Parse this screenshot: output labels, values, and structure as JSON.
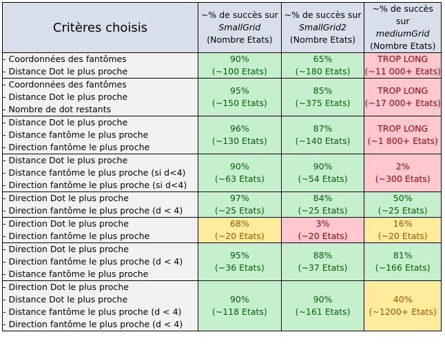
{
  "header": {
    "criteria": "Critères choisis",
    "columns": [
      {
        "line1": "~% de succès sur",
        "map": "SmallGrid",
        "line3": "(Nombre Etats)"
      },
      {
        "line1": "~% de succès sur",
        "map": "SmallGrid2",
        "line3": "(Nombre Etats)"
      },
      {
        "line1": "~% de succès sur",
        "map": "mediumGrid",
        "line3": "(Nombre Etats)"
      }
    ]
  },
  "rows": [
    {
      "criteria": [
        "- Coordonnées des fantômes",
        "- Distance Dot le plus proche"
      ],
      "cells": [
        {
          "pct": "90%",
          "states": "(~100 Etats)",
          "status": "green"
        },
        {
          "pct": "65%",
          "states": "(~180 Etats)",
          "status": "green"
        },
        {
          "pct": "TROP LONG",
          "states": "(~11 000+ Etats)",
          "status": "red"
        }
      ]
    },
    {
      "criteria": [
        "- Coordonnées des fantômes",
        "- Distance Dot le plus proche",
        "- Nombre de dot restants"
      ],
      "cells": [
        {
          "pct": "95%",
          "states": "(~150 Etats)",
          "status": "green"
        },
        {
          "pct": "85%",
          "states": "(~375 Etats)",
          "status": "green"
        },
        {
          "pct": "TROP LONG",
          "states": "(~17 000+ Etats)",
          "status": "red"
        }
      ]
    },
    {
      "criteria": [
        "- Distance Dot le plus proche",
        "- Distance fantôme le plus proche",
        "- Direction fantôme le plus proche"
      ],
      "cells": [
        {
          "pct": "96%",
          "states": "(~130 Etats)",
          "status": "green"
        },
        {
          "pct": "87%",
          "states": "(~140 Etats)",
          "status": "green"
        },
        {
          "pct": "TROP LONG",
          "states": "(~1 800+ Etats)",
          "status": "red"
        }
      ]
    },
    {
      "criteria": [
        "- Distance Dot le plus proche",
        "- Distance fantôme le plus proche (si d<4)",
        "- Direction fantôme le plus proche (si d<4)"
      ],
      "cells": [
        {
          "pct": "90%",
          "states": "(~63 Etats)",
          "status": "green"
        },
        {
          "pct": "90%",
          "states": "(~54 Etats)",
          "status": "green"
        },
        {
          "pct": "2%",
          "states": "(~300 Etats)",
          "status": "red"
        }
      ]
    },
    {
      "criteria": [
        "- Direction Dot le plus proche",
        "- Direction fantôme le plus proche (d < 4)"
      ],
      "cells": [
        {
          "pct": "97%",
          "states": "(~25 Etats)",
          "status": "green"
        },
        {
          "pct": "84%",
          "states": "(~25 Etats)",
          "status": "green"
        },
        {
          "pct": "50%",
          "states": "(~25 Etats)",
          "status": "green"
        }
      ]
    },
    {
      "criteria": [
        "- Direction Dot le plus proche",
        "- Direction fantôme le plus proche"
      ],
      "cells": [
        {
          "pct": "68%",
          "states": "(~20 Etats)",
          "status": "yellow"
        },
        {
          "pct": "3%",
          "states": "(~20 Etats)",
          "status": "red"
        },
        {
          "pct": "16%",
          "states": "(~20 Etats)",
          "status": "yellow"
        }
      ]
    },
    {
      "criteria": [
        "- Direction Dot le plus proche",
        "- Direction fantôme le plus proche (d < 4)",
        "- Distance fantôme  le plus proche"
      ],
      "cells": [
        {
          "pct": "95%",
          "states": "(~36 Etats)",
          "status": "green"
        },
        {
          "pct": "88%",
          "states": "(~37 Etats)",
          "status": "green"
        },
        {
          "pct": "81%",
          "states": "(~166 Etats)",
          "status": "green"
        }
      ]
    },
    {
      "criteria": [
        "- Direction Dot le plus proche",
        "- Distance Dot le plus proche",
        "- Distance fantôme  le plus proche (d < 4)",
        "- Direction fantôme  le plus proche (d < 4)"
      ],
      "cells": [
        {
          "pct": "90%",
          "states": "(~118 Etats)",
          "status": "green"
        },
        {
          "pct": "90%",
          "states": "(~161 Etats)",
          "status": "green"
        },
        {
          "pct": "40%",
          "states": "(~1200+ Etats)",
          "status": "yellow"
        }
      ]
    }
  ]
}
